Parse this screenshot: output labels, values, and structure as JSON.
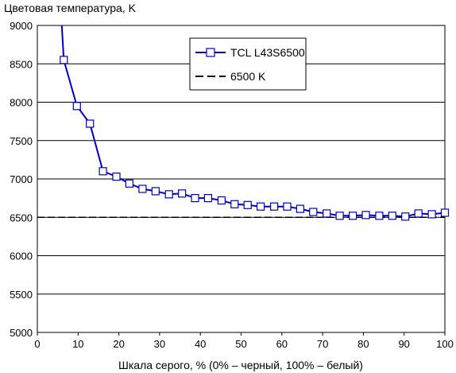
{
  "chart_data": {
    "type": "line",
    "ylabel": "Цветовая температура, K",
    "xlabel": "Шкала серого, % (0% – черный, 100% – белый)",
    "xlim": [
      0,
      100
    ],
    "ylim": [
      5000,
      9000
    ],
    "xticks": [
      "0",
      "10",
      "20",
      "30",
      "40",
      "50",
      "60",
      "70",
      "80",
      "90",
      "100"
    ],
    "yticks": [
      "5000",
      "5500",
      "6000",
      "6500",
      "7000",
      "7500",
      "8000",
      "8500",
      "9000"
    ],
    "grid": "horizontal",
    "legend_position": "top-right",
    "series": [
      {
        "name": "TCL L43S6500",
        "color": "#0000c0",
        "marker": "square",
        "x": [
          6,
          6.5,
          9.7,
          12.9,
          16.1,
          19.4,
          22.6,
          25.8,
          29,
          32.3,
          35.5,
          38.7,
          41.9,
          45.2,
          48.4,
          51.6,
          54.8,
          58.1,
          61.3,
          64.5,
          67.7,
          71,
          74.2,
          77.4,
          80.6,
          83.9,
          87.1,
          90.3,
          93.5,
          96.8,
          100
        ],
        "y": [
          9000,
          8550,
          7950,
          7720,
          7100,
          7030,
          6940,
          6870,
          6840,
          6800,
          6810,
          6750,
          6750,
          6720,
          6670,
          6660,
          6640,
          6640,
          6640,
          6610,
          6570,
          6550,
          6520,
          6520,
          6530,
          6520,
          6520,
          6510,
          6550,
          6540,
          6560
        ]
      },
      {
        "name": "6500 K",
        "color": "#000000",
        "style": "dashed",
        "x": [
          0,
          100
        ],
        "y": [
          6500,
          6500
        ]
      }
    ]
  }
}
